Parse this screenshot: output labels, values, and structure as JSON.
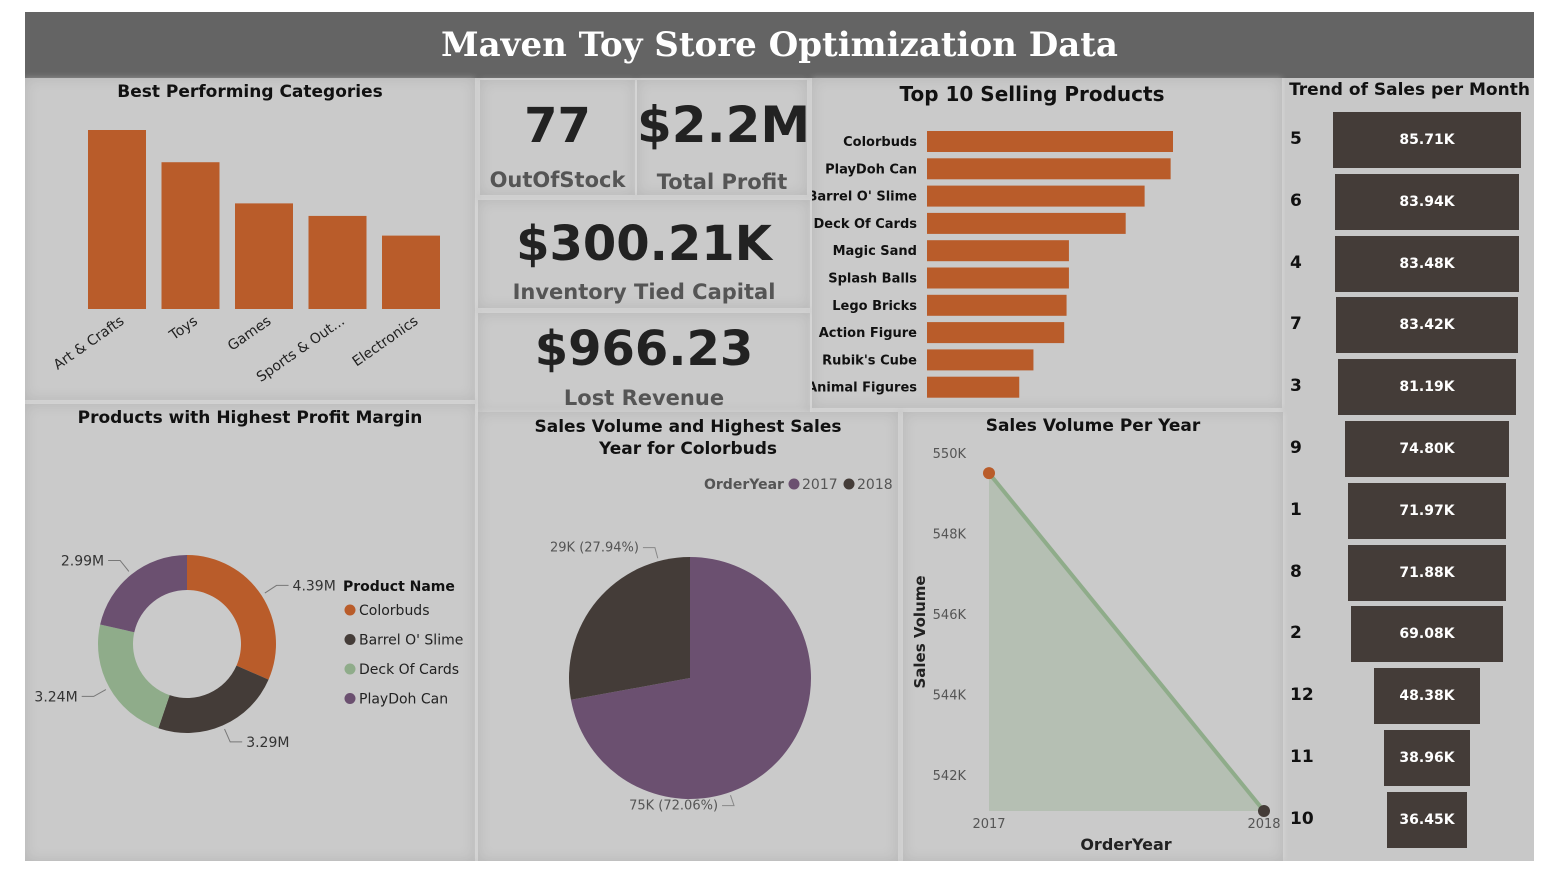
{
  "header": {
    "title": "Maven Toy Store Optimization Data"
  },
  "colors": {
    "orange": "#b95c2a",
    "dark": "#443c38",
    "green": "#8fac8a",
    "purple": "#6b5070",
    "banner": "#646464"
  },
  "kpis": {
    "out_of_stock": {
      "value": "77",
      "label": "OutOfStock"
    },
    "total_profit": {
      "value": "$2.2M",
      "label": "Total Profit"
    },
    "inventory": {
      "value": "$300.21K",
      "label": "Inventory Tied Capital"
    },
    "lost_revenue": {
      "value": "$966.23",
      "label": "Lost Revenue"
    }
  },
  "chart_data": [
    {
      "id": "categories",
      "type": "bar",
      "title": "Best Performing Categories",
      "categories": [
        "Art & Crafts",
        "Toys",
        "Games",
        "Sports & Out...",
        "Electronics"
      ],
      "values": [
        100,
        82,
        59,
        52,
        41
      ]
    },
    {
      "id": "top10",
      "type": "bar",
      "orientation": "horizontal",
      "title": "Top 10 Selling Products",
      "categories": [
        "Colorbuds",
        "PlayDoh Can",
        "Barrel O' Slime",
        "Deck Of Cards",
        "Magic Sand",
        "Splash Balls",
        "Lego Bricks",
        "Action Figure",
        "Rubik's Cube",
        "Animal Figures"
      ],
      "values": [
        104,
        103,
        92,
        84,
        60,
        60,
        59,
        58,
        45,
        39
      ]
    },
    {
      "id": "trend",
      "type": "bar",
      "subtype": "funnel",
      "title": "Trend of Sales per Month",
      "categories": [
        "5",
        "6",
        "4",
        "7",
        "3",
        "9",
        "1",
        "8",
        "2",
        "12",
        "11",
        "10"
      ],
      "values": [
        85.71,
        83.94,
        83.48,
        83.42,
        81.19,
        74.8,
        71.97,
        71.88,
        69.08,
        48.38,
        38.96,
        36.45
      ],
      "labels": [
        "85.71K",
        "83.94K",
        "83.48K",
        "83.42K",
        "81.19K",
        "74.80K",
        "71.97K",
        "71.88K",
        "69.08K",
        "48.38K",
        "38.96K",
        "36.45K"
      ]
    },
    {
      "id": "margin",
      "type": "pie",
      "subtype": "donut",
      "title": "Products with Highest Profit Margin",
      "legend_title": "Product Name",
      "legend_position": "right",
      "series": [
        {
          "name": "Colorbuds",
          "value": 4.39,
          "label": "4.39M",
          "color": "#b95c2a"
        },
        {
          "name": "Barrel O' Slime",
          "value": 3.29,
          "label": "3.29M",
          "color": "#443c38"
        },
        {
          "name": "Deck Of Cards",
          "value": 3.24,
          "label": "3.24M",
          "color": "#8fac8a"
        },
        {
          "name": "PlayDoh Can",
          "value": 2.99,
          "label": "2.99M",
          "color": "#6b5070"
        }
      ]
    },
    {
      "id": "colorbuds",
      "type": "pie",
      "title": "Sales Volume and Highest Sales Year for Colorbuds",
      "legend_title": "OrderYear",
      "legend_position": "top-right",
      "series": [
        {
          "name": "2017",
          "value": 75,
          "label": "75K (72.06%)",
          "color": "#6b5070"
        },
        {
          "name": "2018",
          "value": 29,
          "label": "29K (27.94%)",
          "color": "#443c38"
        }
      ]
    },
    {
      "id": "yearly",
      "type": "area",
      "title": "Sales Volume Per Year",
      "xlabel": "OrderYear",
      "ylabel": "Sales Volume",
      "x": [
        "2017",
        "2018"
      ],
      "values": [
        549.5,
        541.1
      ],
      "ylim": [
        541.1,
        550
      ],
      "yticks": [
        542,
        544,
        546,
        548,
        550
      ],
      "ytick_labels": [
        "542K",
        "544K",
        "546K",
        "548K",
        "550K"
      ],
      "marker_colors": [
        "#b95c2a",
        "#443c38"
      ],
      "line_color": "#8fac8a"
    }
  ]
}
